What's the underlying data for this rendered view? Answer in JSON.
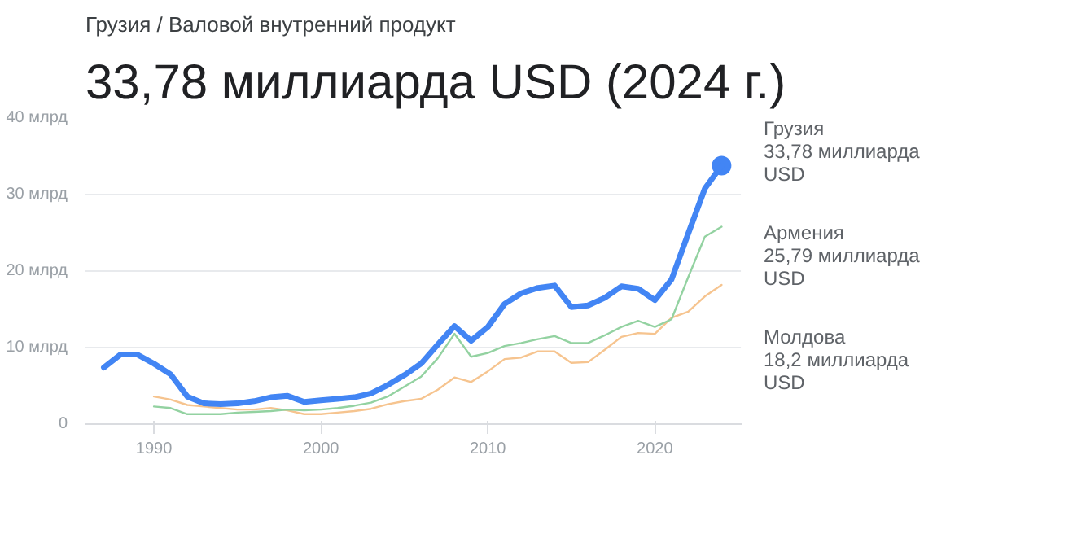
{
  "chart_data": {
    "type": "line",
    "subtitle": "Грузия / Валовой внутренний продукт",
    "title": "33,78 миллиарда USD (2024 г.)",
    "x": [
      1987,
      1988,
      1989,
      1990,
      1991,
      1992,
      1993,
      1994,
      1995,
      1996,
      1997,
      1998,
      1999,
      2000,
      2001,
      2002,
      2003,
      2004,
      2005,
      2006,
      2007,
      2008,
      2009,
      2010,
      2011,
      2012,
      2013,
      2014,
      2015,
      2016,
      2017,
      2018,
      2019,
      2020,
      2021,
      2022,
      2023,
      2024
    ],
    "series": [
      {
        "name": "Грузия",
        "color": "#4285f4",
        "values": [
          7.4,
          9.1,
          9.1,
          7.9,
          6.5,
          3.6,
          2.7,
          2.6,
          2.7,
          3.0,
          3.5,
          3.7,
          2.9,
          3.1,
          3.3,
          3.5,
          4.0,
          5.1,
          6.4,
          7.9,
          10.4,
          12.8,
          10.9,
          12.7,
          15.7,
          17.1,
          17.8,
          18.1,
          15.3,
          15.5,
          16.5,
          18.0,
          17.7,
          16.2,
          18.9,
          24.9,
          30.8,
          33.78
        ]
      },
      {
        "name": "Армения",
        "color": "#93d2a1",
        "values": [
          null,
          null,
          null,
          2.3,
          2.1,
          1.3,
          1.3,
          1.3,
          1.5,
          1.6,
          1.7,
          1.9,
          1.8,
          1.9,
          2.1,
          2.4,
          2.8,
          3.6,
          4.9,
          6.2,
          8.6,
          11.8,
          8.8,
          9.3,
          10.2,
          10.6,
          11.1,
          11.5,
          10.6,
          10.6,
          11.6,
          12.7,
          13.5,
          12.7,
          13.7,
          19.2,
          24.5,
          25.79
        ]
      },
      {
        "name": "Молдова",
        "color": "#f6c48f",
        "values": [
          null,
          null,
          null,
          3.6,
          3.2,
          2.5,
          2.3,
          2.1,
          1.9,
          1.9,
          2.1,
          1.8,
          1.3,
          1.3,
          1.5,
          1.7,
          2.0,
          2.6,
          3.0,
          3.3,
          4.5,
          6.1,
          5.5,
          6.9,
          8.5,
          8.7,
          9.5,
          9.5,
          8.0,
          8.1,
          9.7,
          11.4,
          11.9,
          11.8,
          13.9,
          14.7,
          16.7,
          18.2
        ]
      }
    ],
    "annotations": [
      {
        "text": "33,78 миллиарда USD",
        "x": 2024,
        "y": 33.78
      },
      "25,79 миллиарда USD",
      "18,2 миллиарда USD"
    ],
    "xlim": [
      1985.9,
      2025.2
    ],
    "xticks": [
      1990,
      2000,
      2010,
      2020
    ],
    "ylim": [
      0,
      40
    ],
    "yticks": [
      {
        "value": 0,
        "label": "0"
      },
      {
        "value": 10,
        "label": "10 млрд"
      },
      {
        "value": 20,
        "label": "20 млрд"
      },
      {
        "value": 30,
        "label": "30 млрд"
      },
      {
        "value": 40,
        "label": "40 млрд"
      }
    ],
    "grid": "y",
    "legend": "right"
  }
}
